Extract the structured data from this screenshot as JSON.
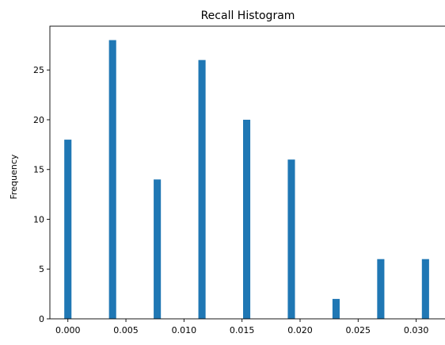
{
  "chart_data": {
    "type": "bar",
    "title": "Recall Histogram",
    "xlabel": "",
    "ylabel": "Frequency",
    "xlim": [
      -0.00155,
      0.03255
    ],
    "ylim": [
      0,
      29.4
    ],
    "xticks": [
      0.0,
      0.005,
      0.01,
      0.015,
      0.02,
      0.025,
      0.03
    ],
    "xtick_labels": [
      "0.000",
      "0.005",
      "0.010",
      "0.015",
      "0.020",
      "0.025",
      "0.030"
    ],
    "yticks": [
      0,
      5,
      10,
      15,
      20,
      25
    ],
    "ytick_labels": [
      "0",
      "5",
      "10",
      "15",
      "20",
      "25"
    ],
    "bin_width": 0.00062,
    "bars": [
      {
        "x": 0.0,
        "value": 18
      },
      {
        "x": 0.00385,
        "value": 28
      },
      {
        "x": 0.0077,
        "value": 14
      },
      {
        "x": 0.01155,
        "value": 26
      },
      {
        "x": 0.0154,
        "value": 20
      },
      {
        "x": 0.01925,
        "value": 16
      },
      {
        "x": 0.0231,
        "value": 2
      },
      {
        "x": 0.02695,
        "value": 6
      },
      {
        "x": 0.0308,
        "value": 6
      }
    ],
    "bar_color": "#1f77b4",
    "grid": false,
    "legend": "none"
  }
}
